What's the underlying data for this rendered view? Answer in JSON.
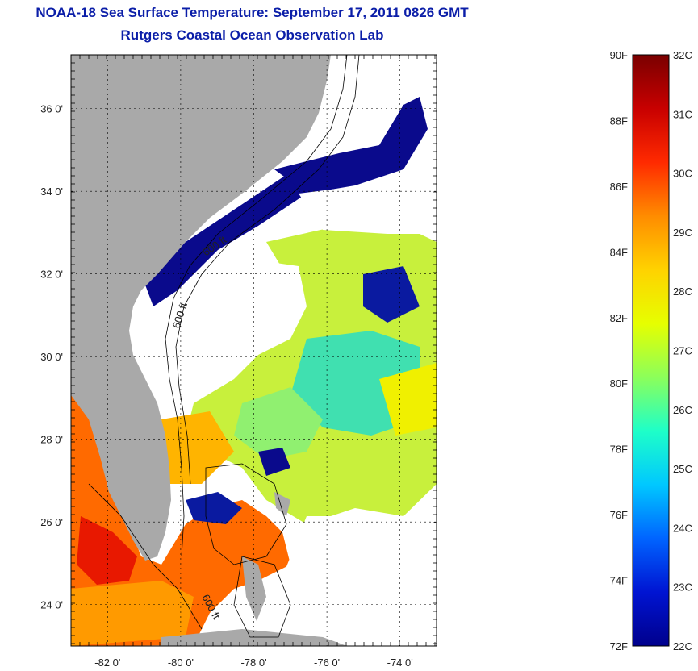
{
  "title": "NOAA-18 Sea Surface Temperature:  September 17, 2011 0826 GMT",
  "subtitle": "Rutgers Coastal Ocean Observation Lab",
  "map": {
    "lon_ticks": [
      {
        "value": -82,
        "label": "-82 0'"
      },
      {
        "value": -80,
        "label": "-80 0'"
      },
      {
        "value": -78,
        "label": "-78 0'"
      },
      {
        "value": -76,
        "label": "-76 0'"
      },
      {
        "value": -74,
        "label": "-74 0'"
      }
    ],
    "lat_ticks": [
      {
        "value": 36,
        "label": "36 0'"
      },
      {
        "value": 34,
        "label": "34 0'"
      },
      {
        "value": 32,
        "label": "32 0'"
      },
      {
        "value": 30,
        "label": "30 0'"
      },
      {
        "value": 28,
        "label": "28 0'"
      },
      {
        "value": 26,
        "label": "26 0'"
      },
      {
        "value": 24,
        "label": "24 0'"
      }
    ],
    "contour_labels": [
      "600 ft",
      "600 ft",
      "600 ft"
    ],
    "colors": {
      "land": "#a9a9a9",
      "cloud": "#ffffff",
      "cold": "#0a0a8c",
      "frame": "#000000"
    }
  },
  "colorbar": {
    "fahrenheit": [
      "90F",
      "88F",
      "86F",
      "84F",
      "82F",
      "80F",
      "78F",
      "76F",
      "74F",
      "72F"
    ],
    "celsius": [
      "32C",
      "31C",
      "30C",
      "29C",
      "28C",
      "27C",
      "26C",
      "25C",
      "24C",
      "23C",
      "22C"
    ],
    "gradient": [
      "#7a0000",
      "#c80000",
      "#ff2a00",
      "#ff8c00",
      "#ffd200",
      "#e6ff00",
      "#8cff5a",
      "#1effc8",
      "#00c8ff",
      "#0064ff",
      "#0014d2",
      "#00008c"
    ]
  }
}
